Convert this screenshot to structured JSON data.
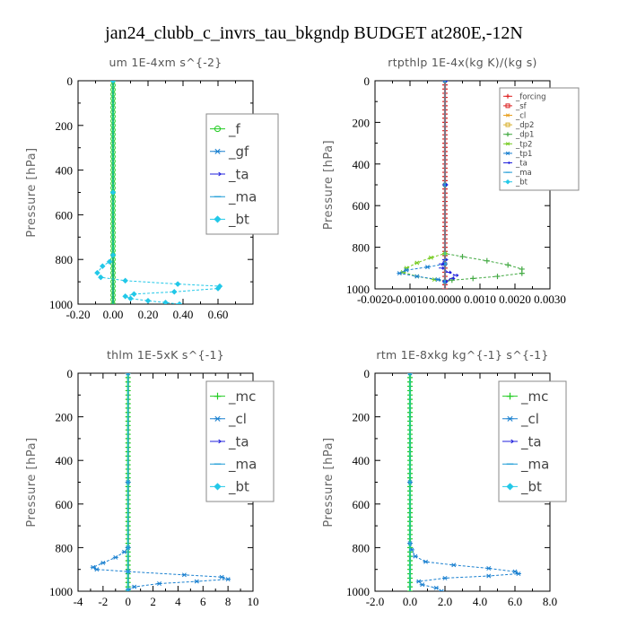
{
  "figure": {
    "title": "jan24_clubb_c_invrs_tau_bkgndp  BUDGET at280E,-12N"
  },
  "chart_data": [
    {
      "type": "line",
      "title": "um   1E-4xm s^{-2}",
      "ylabel": "Pressure [hPa]",
      "xlim": [
        -0.2,
        0.8
      ],
      "ylim": [
        1000,
        0
      ],
      "y_reversed": true,
      "xticks": [
        "-0.20",
        "0.00",
        "0.20",
        "0.40",
        "0.60"
      ],
      "yticks": [
        "0",
        "200",
        "400",
        "600",
        "800",
        "1000"
      ],
      "legend_position": "top-right",
      "series": [
        {
          "name": "_f",
          "color": "#22cc22",
          "marker": "circle",
          "x": [
            0,
            0,
            0,
            0,
            0,
            0,
            0,
            0,
            0,
            0,
            0
          ],
          "y": [
            0,
            100,
            200,
            300,
            400,
            500,
            600,
            700,
            800,
            900,
            1000
          ]
        },
        {
          "name": "_gf",
          "color": "#1a80d0",
          "marker": "star",
          "x": [
            0,
            0,
            0,
            0,
            0,
            0,
            0,
            0,
            0,
            0,
            0
          ],
          "y": [
            0,
            100,
            200,
            300,
            400,
            500,
            600,
            700,
            800,
            900,
            1000
          ]
        },
        {
          "name": "_ta",
          "color": "#2222dd",
          "marker": "arrow",
          "x": [
            0,
            0,
            0,
            0,
            0,
            0,
            0,
            0,
            0,
            0,
            0
          ],
          "y": [
            0,
            100,
            200,
            300,
            400,
            500,
            600,
            700,
            800,
            900,
            1000
          ]
        },
        {
          "name": "_ma",
          "color": "#1a9ad6",
          "marker": "dash",
          "x": [
            0,
            0,
            0,
            0,
            0,
            0,
            0,
            0,
            0,
            0,
            0
          ],
          "y": [
            0,
            100,
            200,
            300,
            400,
            500,
            600,
            700,
            800,
            900,
            1000
          ]
        },
        {
          "name": "_bt",
          "color": "#22c8e8",
          "marker": "diamond",
          "x": [
            0,
            0,
            0,
            -0.02,
            -0.06,
            -0.09,
            -0.07,
            0.07,
            0.37,
            0.61,
            0.6,
            0.35,
            0.12,
            0.07,
            0.1,
            0.2,
            0.3,
            0.38
          ],
          "y": [
            0,
            500,
            780,
            810,
            830,
            860,
            880,
            895,
            910,
            920,
            930,
            945,
            955,
            965,
            975,
            985,
            993,
            1000
          ]
        }
      ]
    },
    {
      "type": "line",
      "title": "rtpthlp   1E-4x(kg K)/(kg s)",
      "ylabel": "Pressure [hPa]",
      "xlim": [
        -0.002,
        0.003
      ],
      "ylim": [
        1000,
        0
      ],
      "y_reversed": true,
      "xticks": [
        "-0.0020",
        "-0.0010",
        "0.0000",
        "0.0010",
        "0.0020",
        "0.0030"
      ],
      "yticks": [
        "0",
        "200",
        "400",
        "600",
        "800",
        "1000"
      ],
      "legend_position": "top-right",
      "series": [
        {
          "name": "_forcing",
          "color": "#dd2222",
          "marker": "cross",
          "x": [
            0,
            0,
            0,
            0,
            0,
            0,
            0,
            0,
            0,
            0,
            0
          ],
          "y": [
            0,
            100,
            200,
            300,
            400,
            500,
            600,
            700,
            800,
            900,
            1000
          ]
        },
        {
          "name": "_sf",
          "color": "#dd2222",
          "marker": "square",
          "x": [
            0,
            0,
            0,
            0,
            0,
            0,
            0,
            0,
            0,
            0,
            0
          ],
          "y": [
            0,
            100,
            200,
            300,
            400,
            500,
            600,
            700,
            800,
            900,
            1000
          ]
        },
        {
          "name": "_cl",
          "color": "#e8a020",
          "marker": "star",
          "x": [
            0,
            0,
            0
          ],
          "y": [
            0,
            500,
            1000
          ]
        },
        {
          "name": "_dp2",
          "color": "#d8b030",
          "marker": "square",
          "x": [
            0,
            0,
            0
          ],
          "y": [
            0,
            500,
            1000
          ]
        },
        {
          "name": "_dp1",
          "color": "#44aa44",
          "marker": "cross",
          "x": [
            0,
            0,
            0,
            0.0005,
            0.0012,
            0.0018,
            0.0022,
            0.0022,
            0.0015,
            0.0008,
            0.0002,
            0
          ],
          "y": [
            0,
            500,
            830,
            845,
            865,
            885,
            905,
            925,
            940,
            950,
            958,
            965
          ]
        },
        {
          "name": "_tp2",
          "color": "#77cc22",
          "marker": "star",
          "x": [
            0,
            0,
            0,
            -0.0004,
            -0.0008,
            -0.0011,
            -0.0012,
            -0.0008,
            -0.0003,
            0
          ],
          "y": [
            0,
            500,
            830,
            850,
            875,
            900,
            920,
            940,
            955,
            965
          ]
        },
        {
          "name": "_tp1",
          "color": "#1a80d0",
          "marker": "star",
          "x": [
            0,
            0,
            0,
            -0.0005,
            -0.0011,
            -0.0013,
            -0.0008,
            -0.0002,
            0
          ],
          "y": [
            0,
            500,
            880,
            895,
            910,
            925,
            940,
            955,
            965
          ]
        },
        {
          "name": "_ta",
          "color": "#2222dd",
          "marker": "arrow",
          "x": [
            0,
            0,
            0,
            -0.0001,
            -0.0001,
            0.0001,
            0.0003,
            0.0002,
            0
          ],
          "y": [
            0,
            500,
            860,
            880,
            900,
            920,
            935,
            950,
            965
          ]
        },
        {
          "name": "_ma",
          "color": "#1a9ad6",
          "marker": "dash",
          "x": [
            0,
            0,
            0
          ],
          "y": [
            0,
            500,
            1000
          ]
        },
        {
          "name": "_bt",
          "color": "#22c8e8",
          "marker": "diamond",
          "x": [
            0,
            0,
            0
          ],
          "y": [
            0,
            500,
            1000
          ]
        }
      ]
    },
    {
      "type": "line",
      "title": "thlm   1E-5xK s^{-1}",
      "ylabel": "Pressure [hPa]",
      "xlim": [
        -4,
        10
      ],
      "ylim": [
        1000,
        0
      ],
      "y_reversed": true,
      "xticks": [
        "-4",
        "-2",
        "0",
        "2",
        "4",
        "6",
        "8",
        "10"
      ],
      "yticks": [
        "0",
        "200",
        "400",
        "600",
        "800",
        "1000"
      ],
      "legend_position": "top-right",
      "series": [
        {
          "name": "_mc",
          "color": "#22cc22",
          "marker": "cross",
          "x": [
            0,
            0,
            0,
            0,
            0,
            0,
            0,
            0,
            0,
            0,
            0
          ],
          "y": [
            0,
            100,
            200,
            300,
            400,
            500,
            600,
            700,
            800,
            900,
            1000
          ]
        },
        {
          "name": "_cl",
          "color": "#1a80d0",
          "marker": "star",
          "x": [
            0,
            0,
            0,
            -0.3,
            -1.0,
            -2.0,
            -2.8,
            -2.5,
            0,
            4.5,
            7.5,
            8.0,
            5.5,
            2.5,
            0.5,
            0
          ],
          "y": [
            0,
            500,
            800,
            820,
            845,
            870,
            890,
            900,
            910,
            925,
            935,
            945,
            955,
            965,
            980,
            995
          ]
        },
        {
          "name": "_ta",
          "color": "#2222dd",
          "marker": "arrow",
          "x": [
            0,
            0,
            0
          ],
          "y": [
            0,
            500,
            1000
          ]
        },
        {
          "name": "_ma",
          "color": "#1a9ad6",
          "marker": "dash",
          "x": [
            0,
            0,
            0
          ],
          "y": [
            0,
            500,
            1000
          ]
        },
        {
          "name": "_bt",
          "color": "#22c8e8",
          "marker": "diamond",
          "x": [
            0,
            0,
            0
          ],
          "y": [
            0,
            500,
            1000
          ]
        }
      ]
    },
    {
      "type": "line",
      "title": "rtm   1E-8xkg kg^{-1} s^{-1}",
      "ylabel": "Pressure [hPa]",
      "xlim": [
        -2.0,
        8.0
      ],
      "ylim": [
        1000,
        0
      ],
      "y_reversed": true,
      "xticks": [
        "-2.0",
        "0.0",
        "2.0",
        "4.0",
        "6.0",
        "8.0"
      ],
      "yticks": [
        "0",
        "200",
        "400",
        "600",
        "800",
        "1000"
      ],
      "legend_position": "top-right",
      "series": [
        {
          "name": "_mc",
          "color": "#22cc22",
          "marker": "cross",
          "x": [
            0,
            0,
            0,
            0,
            0,
            0,
            0,
            0,
            0,
            0,
            0
          ],
          "y": [
            0,
            100,
            200,
            300,
            400,
            500,
            600,
            700,
            800,
            900,
            1000
          ]
        },
        {
          "name": "_cl",
          "color": "#1a80d0",
          "marker": "star",
          "x": [
            0,
            0,
            0,
            0.1,
            0.3,
            0.9,
            2.5,
            4.5,
            6.0,
            6.2,
            4.5,
            2.0,
            0.5,
            0.7,
            1.5,
            1.8
          ],
          "y": [
            0,
            500,
            780,
            810,
            840,
            865,
            880,
            895,
            910,
            920,
            930,
            940,
            955,
            970,
            985,
            1000
          ]
        },
        {
          "name": "_ta",
          "color": "#2222dd",
          "marker": "arrow",
          "x": [
            0,
            0,
            0
          ],
          "y": [
            0,
            500,
            1000
          ]
        },
        {
          "name": "_ma",
          "color": "#1a9ad6",
          "marker": "dash",
          "x": [
            0,
            0,
            0
          ],
          "y": [
            0,
            500,
            1000
          ]
        },
        {
          "name": "_bt",
          "color": "#22c8e8",
          "marker": "diamond",
          "x": [
            0,
            0,
            0
          ],
          "y": [
            0,
            500,
            1000
          ]
        }
      ]
    }
  ]
}
